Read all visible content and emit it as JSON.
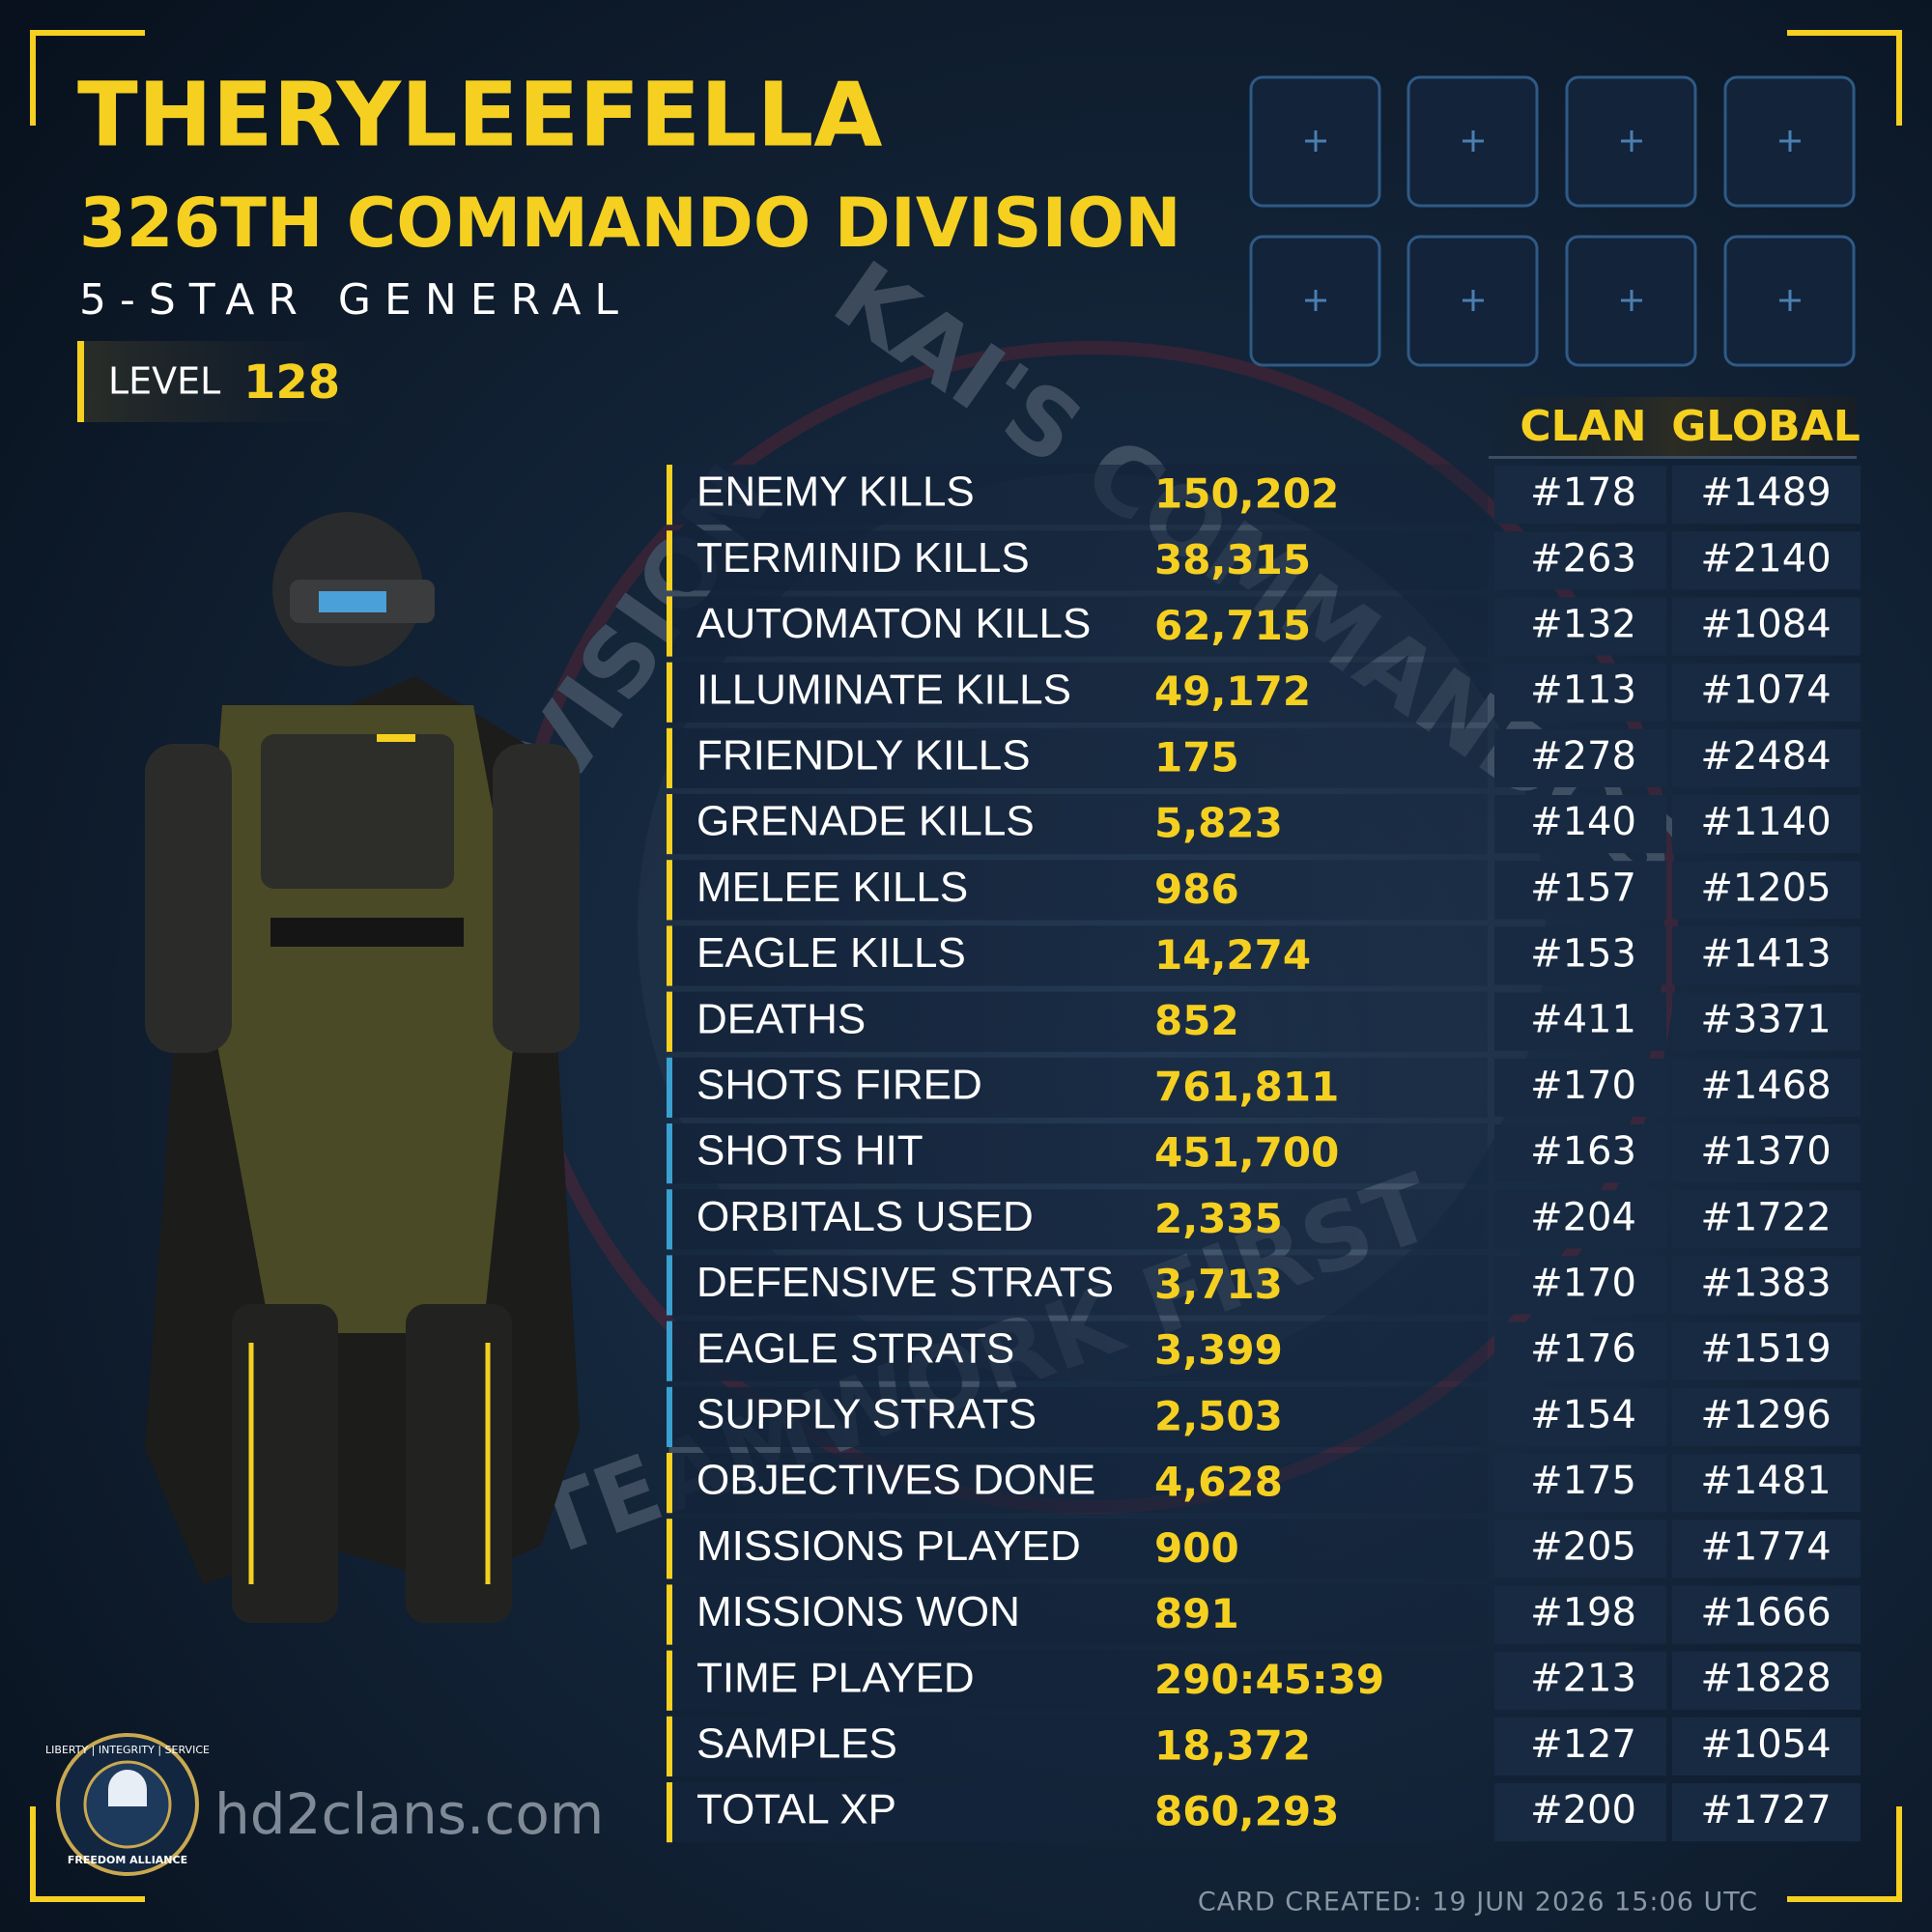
{
  "header": {
    "name": "THERYLEEFELLA",
    "division": "326TH COMMANDO DIVISION",
    "rank": "5-STAR GENERAL",
    "level_label": "LEVEL",
    "level": "128"
  },
  "watermark": {
    "top": "KAI'S COMMANDOS",
    "left": "DIVISION",
    "bottom": "TEAMWORK FIRST"
  },
  "table": {
    "columns": [
      "CLAN",
      "GLOBAL"
    ],
    "rows": [
      {
        "label": "ENEMY KILLS",
        "value": "150,202",
        "clan": "#178",
        "global": "#1489",
        "color": "#f5d020"
      },
      {
        "label": "TERMINID KILLS",
        "value": "38,315",
        "clan": "#263",
        "global": "#2140",
        "color": "#f5d020"
      },
      {
        "label": "AUTOMATON KILLS",
        "value": "62,715",
        "clan": "#132",
        "global": "#1084",
        "color": "#f5d020"
      },
      {
        "label": "ILLUMINATE KILLS",
        "value": "49,172",
        "clan": "#113",
        "global": "#1074",
        "color": "#f5d020"
      },
      {
        "label": "FRIENDLY KILLS",
        "value": "175",
        "clan": "#278",
        "global": "#2484",
        "color": "#f5d020"
      },
      {
        "label": "GRENADE KILLS",
        "value": "5,823",
        "clan": "#140",
        "global": "#1140",
        "color": "#f5d020"
      },
      {
        "label": "MELEE KILLS",
        "value": "986",
        "clan": "#157",
        "global": "#1205",
        "color": "#f5d020"
      },
      {
        "label": "EAGLE KILLS",
        "value": "14,274",
        "clan": "#153",
        "global": "#1413",
        "color": "#f5d020"
      },
      {
        "label": "DEATHS",
        "value": "852",
        "clan": "#411",
        "global": "#3371",
        "color": "#f5d020"
      },
      {
        "label": "SHOTS FIRED",
        "value": "761,811",
        "clan": "#170",
        "global": "#1468",
        "color": "#3aa0d0"
      },
      {
        "label": "SHOTS HIT",
        "value": "451,700",
        "clan": "#163",
        "global": "#1370",
        "color": "#3aa0d0"
      },
      {
        "label": "ORBITALS USED",
        "value": "2,335",
        "clan": "#204",
        "global": "#1722",
        "color": "#3aa0d0"
      },
      {
        "label": "DEFENSIVE STRATS",
        "value": "3,713",
        "clan": "#170",
        "global": "#1383",
        "color": "#3aa0d0"
      },
      {
        "label": "EAGLE STRATS",
        "value": "3,399",
        "clan": "#176",
        "global": "#1519",
        "color": "#3aa0d0"
      },
      {
        "label": "SUPPLY STRATS",
        "value": "2,503",
        "clan": "#154",
        "global": "#1296",
        "color": "#3aa0d0"
      },
      {
        "label": "OBJECTIVES DONE",
        "value": "4,628",
        "clan": "#175",
        "global": "#1481",
        "color": "#f5d020"
      },
      {
        "label": "MISSIONS PLAYED",
        "value": "900",
        "clan": "#205",
        "global": "#1774",
        "color": "#f5d020"
      },
      {
        "label": "MISSIONS WON",
        "value": "891",
        "clan": "#198",
        "global": "#1666",
        "color": "#f5d020"
      },
      {
        "label": "TIME PLAYED",
        "value": "290:45:39",
        "clan": "#213",
        "global": "#1828",
        "color": "#f5d020"
      },
      {
        "label": "SAMPLES",
        "value": "18,372",
        "clan": "#127",
        "global": "#1054",
        "color": "#f5d020"
      },
      {
        "label": "TOTAL XP",
        "value": "860,293",
        "clan": "#200",
        "global": "#1727",
        "color": "#f5d020"
      }
    ]
  },
  "logo": {
    "top": "LIBERTY | INTEGRITY | SERVICE",
    "bottom": "FREEDOM ALLIANCE"
  },
  "footer": {
    "site": "hd2clans.com",
    "created": "CARD CREATED: 19 JUN 2026 15:06 UTC"
  }
}
